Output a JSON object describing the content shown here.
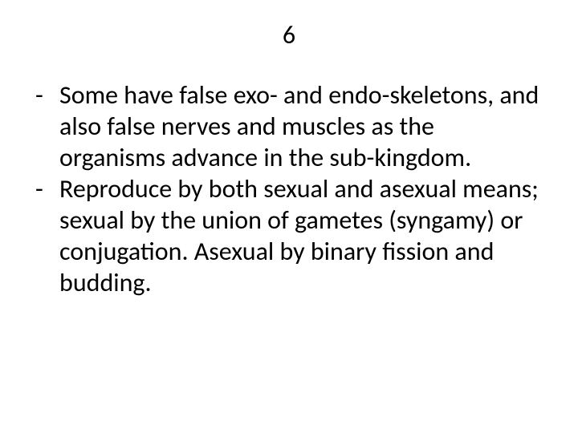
{
  "slide_number": "6",
  "items": [
    "Some have false exo- and endo-skeletons, and also false nerves and muscles as the organisms advance in the sub-kingdom.",
    "Reproduce by both sexual and asexual means; sexual by the union of gametes (syngamy) or conjugation. Asexual by binary fission and budding."
  ],
  "style": {
    "background_color": "#ffffff",
    "text_color": "#000000",
    "title_fontsize": 32,
    "body_fontsize": 32,
    "line_height": 1.22,
    "bullet_char": "-"
  }
}
